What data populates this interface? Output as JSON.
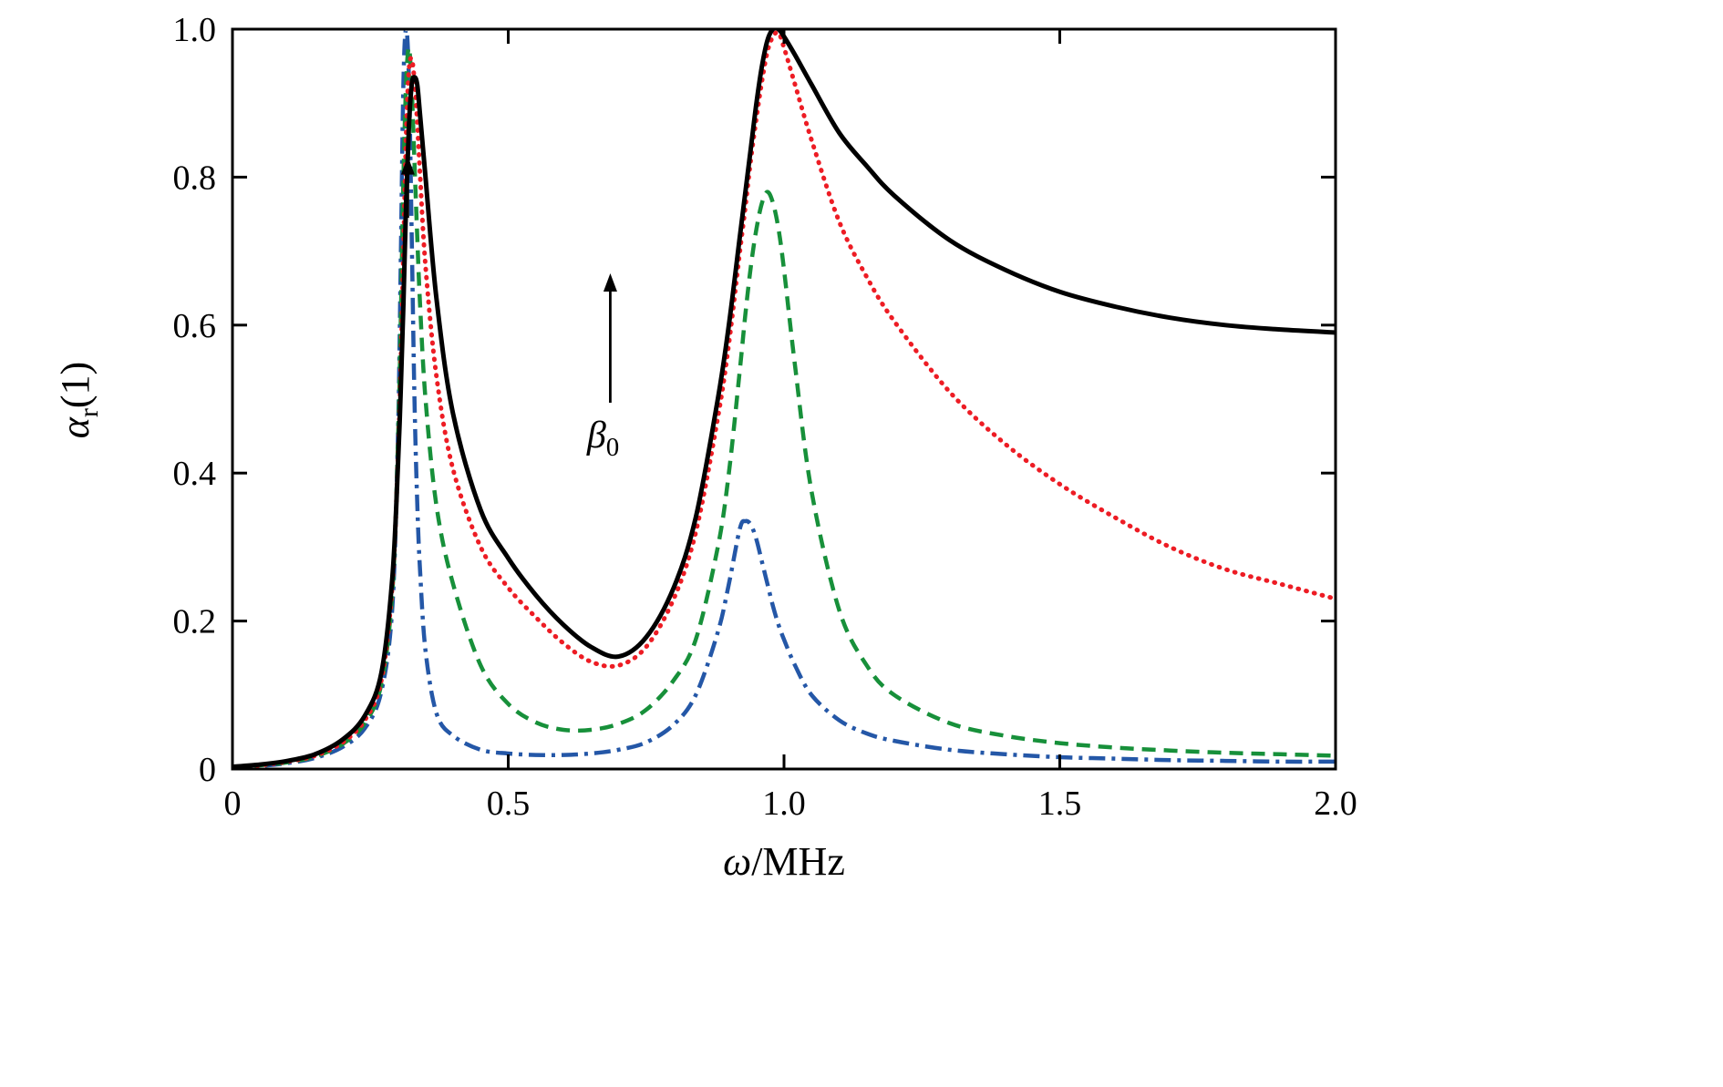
{
  "labels": {
    "y_main": "α",
    "y_sub": "r",
    "y_suffix": "(1)",
    "x_main": "ω",
    "x_suffix": "/MHz"
  },
  "chart_data": {
    "type": "line",
    "title": "",
    "xlabel": "ω/MHz",
    "ylabel": "α_r(1)",
    "xlim": [
      0,
      2
    ],
    "ylim": [
      0,
      1
    ],
    "grid": false,
    "legend": "none",
    "frame_color": "#000000",
    "background": "#ffffff",
    "xticks": [
      0,
      0.5,
      1.0,
      1.5,
      2.0
    ],
    "xtick_labels": [
      "0",
      "0.5",
      "1.0",
      "1.5",
      "2.0"
    ],
    "yticks": [
      0,
      0.2,
      0.4,
      0.6,
      0.8,
      1.0
    ],
    "ytick_labels": [
      "0",
      "0.2",
      "0.4",
      "0.6",
      "0.8",
      "1.0"
    ],
    "x": [
      0,
      0.05,
      0.1,
      0.15,
      0.2,
      0.24,
      0.27,
      0.29,
      0.3,
      0.305,
      0.31,
      0.315,
      0.32,
      0.325,
      0.33,
      0.335,
      0.34,
      0.35,
      0.37,
      0.4,
      0.45,
      0.5,
      0.55,
      0.6,
      0.65,
      0.7,
      0.75,
      0.8,
      0.84,
      0.88,
      0.9,
      0.92,
      0.93,
      0.94,
      0.95,
      0.96,
      0.97,
      0.98,
      0.99,
      1.0,
      1.02,
      1.05,
      1.1,
      1.15,
      1.2,
      1.3,
      1.4,
      1.5,
      1.6,
      1.7,
      1.8,
      1.9,
      2.0
    ],
    "series": [
      {
        "name": "beta0-level-1-blue-dashdot",
        "style": "dashdot",
        "color": "#2457a7",
        "width": 4.5,
        "y": [
          0.002,
          0.004,
          0.008,
          0.015,
          0.03,
          0.055,
          0.105,
          0.22,
          0.45,
          0.68,
          0.93,
          1.0,
          0.93,
          0.72,
          0.5,
          0.36,
          0.27,
          0.16,
          0.075,
          0.045,
          0.026,
          0.021,
          0.019,
          0.019,
          0.021,
          0.026,
          0.036,
          0.06,
          0.1,
          0.185,
          0.25,
          0.325,
          0.335,
          0.33,
          0.31,
          0.28,
          0.25,
          0.22,
          0.195,
          0.175,
          0.14,
          0.1,
          0.066,
          0.048,
          0.038,
          0.026,
          0.02,
          0.016,
          0.014,
          0.012,
          0.011,
          0.01,
          0.01
        ]
      },
      {
        "name": "beta0-level-2-green-dashed",
        "style": "dashed",
        "color": "#17903a",
        "width": 4.5,
        "y": [
          0.002,
          0.005,
          0.009,
          0.017,
          0.034,
          0.062,
          0.115,
          0.24,
          0.44,
          0.6,
          0.8,
          0.93,
          0.975,
          0.92,
          0.82,
          0.72,
          0.63,
          0.5,
          0.355,
          0.25,
          0.14,
          0.088,
          0.063,
          0.053,
          0.053,
          0.061,
          0.08,
          0.12,
          0.175,
          0.3,
          0.4,
          0.54,
          0.615,
          0.68,
          0.73,
          0.765,
          0.78,
          0.765,
          0.73,
          0.675,
          0.545,
          0.375,
          0.215,
          0.14,
          0.1,
          0.062,
          0.045,
          0.035,
          0.029,
          0.025,
          0.022,
          0.02,
          0.018
        ]
      },
      {
        "name": "beta0-level-3-red-dotted",
        "style": "dotted",
        "color": "#ed1c24",
        "width": 5,
        "y": [
          0.002,
          0.005,
          0.01,
          0.018,
          0.036,
          0.066,
          0.12,
          0.25,
          0.42,
          0.54,
          0.7,
          0.86,
          0.945,
          0.96,
          0.93,
          0.875,
          0.805,
          0.68,
          0.53,
          0.405,
          0.3,
          0.245,
          0.205,
          0.17,
          0.145,
          0.14,
          0.165,
          0.23,
          0.32,
          0.475,
          0.575,
          0.7,
          0.76,
          0.825,
          0.88,
          0.93,
          0.97,
          0.99,
          0.995,
          0.975,
          0.925,
          0.85,
          0.74,
          0.665,
          0.605,
          0.51,
          0.44,
          0.385,
          0.34,
          0.3,
          0.27,
          0.25,
          0.23
        ]
      },
      {
        "name": "beta0-level-4-black-solid",
        "style": "solid",
        "color": "#000000",
        "width": 5,
        "y": [
          0.003,
          0.006,
          0.011,
          0.02,
          0.04,
          0.072,
          0.13,
          0.26,
          0.41,
          0.51,
          0.63,
          0.77,
          0.87,
          0.925,
          0.935,
          0.925,
          0.885,
          0.8,
          0.635,
          0.48,
          0.35,
          0.285,
          0.235,
          0.195,
          0.165,
          0.152,
          0.178,
          0.245,
          0.34,
          0.5,
          0.6,
          0.72,
          0.78,
          0.84,
          0.9,
          0.95,
          0.985,
          1.0,
          1.0,
          0.99,
          0.965,
          0.925,
          0.86,
          0.815,
          0.775,
          0.715,
          0.675,
          0.645,
          0.625,
          0.61,
          0.6,
          0.594,
          0.59
        ]
      }
    ],
    "annotations": [
      {
        "type": "arrow",
        "name": "beta0-direction-arrow",
        "x": 0.685,
        "y_from": 0.495,
        "y_to": 0.67
      },
      {
        "type": "arrow",
        "name": "first-peak-arrow",
        "x": 0.318,
        "y_from": 0.745,
        "y_to": 0.828
      },
      {
        "type": "text",
        "name": "beta0-annotation-label",
        "main": "β",
        "sub": "0",
        "x": 0.672,
        "y": 0.435
      }
    ]
  }
}
